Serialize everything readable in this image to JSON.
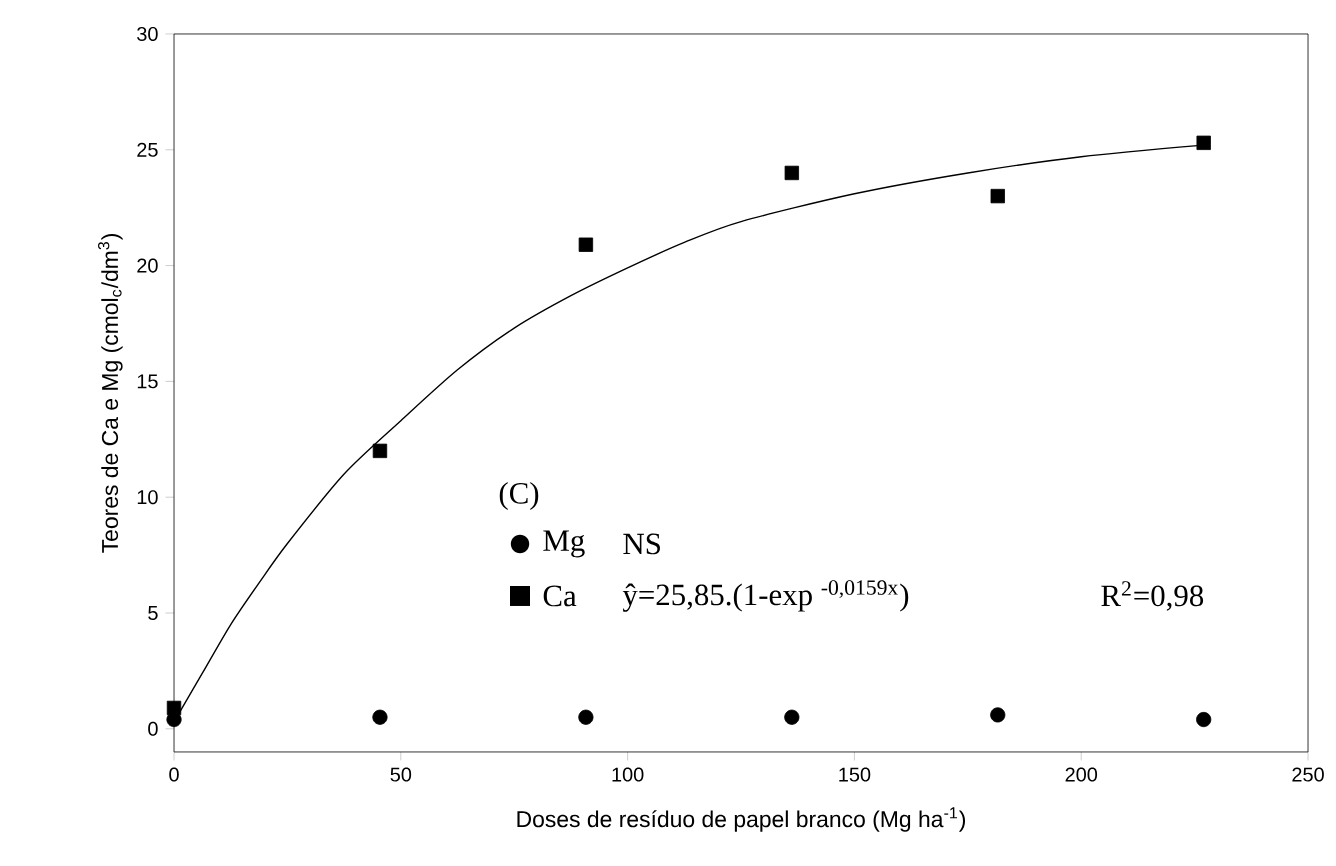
{
  "chart_data": {
    "type": "scatter",
    "xlabel": "Doses de resíduo de papel branco (Mg ha$^{-1}$)",
    "ylabel": "Teores de Ca e Mg (cmol$_{c}$/dm$^{3}$)",
    "x": [
      0,
      45.4,
      90.8,
      136.2,
      181.6,
      227
    ],
    "series": [
      {
        "name": "Mg",
        "marker": "circle",
        "color": "#000000",
        "values": [
          0.4,
          0.5,
          0.5,
          0.5,
          0.6,
          0.4
        ]
      },
      {
        "name": "Ca",
        "marker": "square",
        "color": "#000000",
        "values": [
          0.9,
          12,
          20.9,
          24,
          23,
          25.3
        ]
      },
      {
        "type": "line",
        "marker": "none",
        "color": "#000000",
        "x": [
          0,
          6.25,
          12.5,
          18.75,
          25,
          37.5,
          50,
          62.5,
          75,
          87.5,
          100,
          112.5,
          125,
          150,
          175,
          200,
          227
        ],
        "values": [
          0.3,
          2.4,
          4.5,
          6.3,
          8,
          11,
          13.3,
          15.5,
          17.3,
          18.7,
          19.9,
          21,
          21.9,
          23.1,
          24,
          24.7,
          25.2
        ]
      }
    ],
    "annotations": [
      "(C)",
      "NS",
      "ŷ=25,85.(1-exp $^{-0,0159x}$)",
      "R$^{2}$=0,98"
    ],
    "legend": "bottom",
    "xlim": [
      0,
      250
    ],
    "xticks": [
      0,
      50,
      100,
      150,
      200,
      250
    ],
    "ylim": [
      -1,
      30
    ],
    "yticks": [
      0,
      5,
      10,
      15,
      20,
      25,
      30
    ]
  }
}
